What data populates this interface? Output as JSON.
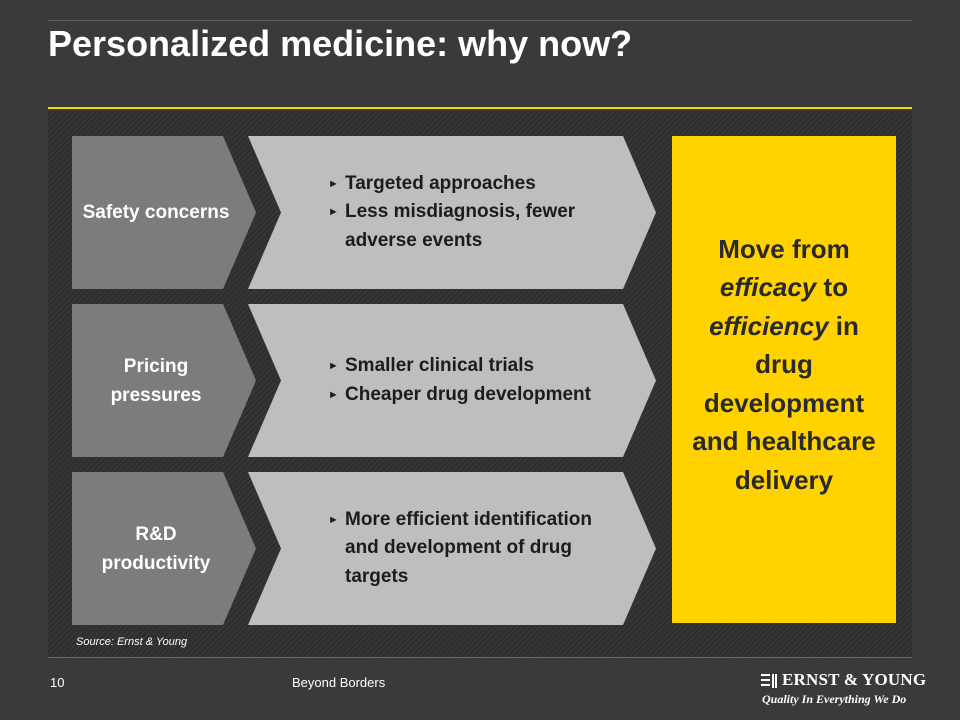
{
  "slide": {
    "title": "Personalized medicine: why now?"
  },
  "rows": [
    {
      "driver": "Safety concerns",
      "bullets": [
        "Targeted approaches",
        "Less misdiagnosis, fewer adverse events"
      ]
    },
    {
      "driver": "Pricing pressures",
      "bullets": [
        "Smaller clinical trials",
        "Cheaper drug development"
      ]
    },
    {
      "driver": "R&D productivity",
      "bullets": [
        "More efficient identification and development of drug targets"
      ]
    }
  ],
  "conclusion": {
    "part1": "Move from",
    "efficacy": "efficacy",
    "to": "to",
    "efficiency": "efficiency",
    "part2": "in drug development and healthcare delivery"
  },
  "source": "Source: Ernst & Young",
  "footer": {
    "page_number": "10",
    "text": "Beyond Borders",
    "logo_name": "ERNST & YOUNG",
    "logo_tagline": "Quality In Everything We Do"
  },
  "colors": {
    "background": "#3a3a3a",
    "accent": "#ffd200",
    "driver_arrow": "#7c7c7c",
    "effect_arrow": "#bebebe"
  },
  "icons": {
    "bullet": "right-pointing-triangle",
    "logo": "ernst-young-logo-mark"
  }
}
